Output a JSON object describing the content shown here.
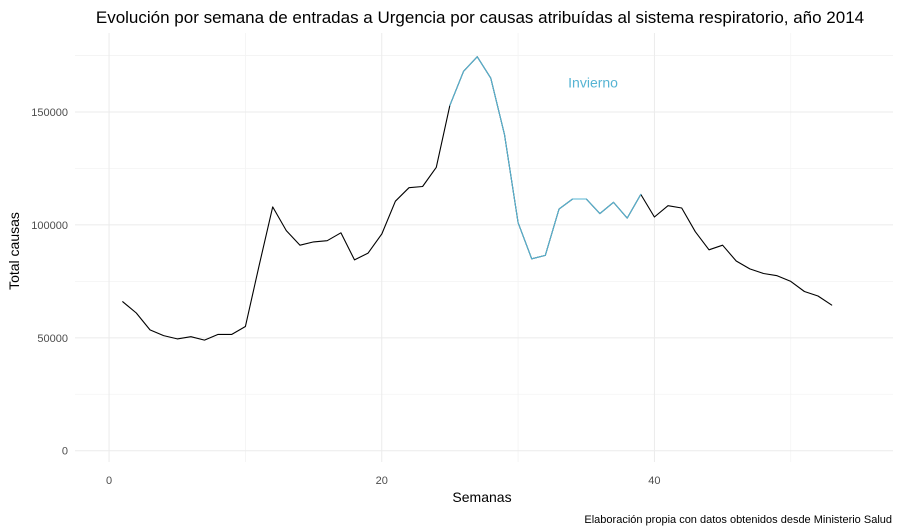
{
  "chart_data": {
    "type": "line",
    "title": "Evolución por semana de entradas a Urgencia por causas atribuídas al sistema respiratorio, año 2014",
    "xlabel": "Semanas",
    "ylabel": "Total causas",
    "caption": "Elaboración propia con datos obtenidos desde Ministerio Salud",
    "xlim": [
      -2.5,
      57.5
    ],
    "ylim": [
      -5000,
      185000
    ],
    "x_ticks": [
      0,
      20,
      40
    ],
    "x_tick_labels": [
      "0",
      "20",
      "40"
    ],
    "y_ticks": [
      0,
      50000,
      100000,
      150000
    ],
    "y_tick_labels": [
      "0",
      "50000",
      "100000",
      "150000"
    ],
    "grid": true,
    "colors": {
      "base": "#000000",
      "highlight": "#56b4d3"
    },
    "annotations": [
      {
        "text": "Invierno",
        "x": 35.5,
        "y": 163000,
        "color": "#56b4d3"
      }
    ],
    "series": [
      {
        "color": "#000000",
        "x": [
          1,
          2,
          3,
          4,
          5,
          6,
          7,
          8,
          9,
          10,
          11,
          12,
          13,
          14,
          15,
          16,
          17,
          18,
          19,
          20,
          21,
          22,
          23,
          24,
          25,
          26,
          27,
          28,
          29,
          30,
          31,
          32,
          33,
          34,
          35,
          36,
          37,
          38,
          39,
          40,
          41,
          42,
          43,
          44,
          45,
          46,
          47,
          48,
          49,
          50,
          51,
          52,
          53
        ],
        "y": [
          66000,
          61000,
          53500,
          51000,
          49500,
          50500,
          49000,
          51500,
          51500,
          55000,
          82000,
          108000,
          97500,
          91000,
          92500,
          93000,
          96500,
          84500,
          87500,
          96000,
          110500,
          116500,
          117000,
          125500,
          153000,
          168000,
          174500,
          165000,
          140000,
          101000,
          85000,
          86500,
          107000,
          111500,
          111500,
          105000,
          110000,
          103000,
          113500,
          103500,
          108500,
          107500,
          97000,
          89000,
          91000,
          84000,
          80500,
          78500,
          77500,
          75000,
          70500,
          68500,
          64500
        ]
      },
      {
        "color": "#56b4d3",
        "x": [
          25,
          26,
          27,
          28,
          29,
          30,
          31,
          32,
          33,
          34,
          35,
          36,
          37,
          38,
          39
        ],
        "y": [
          153000,
          168000,
          174500,
          165000,
          140000,
          101000,
          85000,
          86500,
          107000,
          111500,
          111500,
          105000,
          110000,
          103000,
          113500
        ]
      }
    ]
  }
}
